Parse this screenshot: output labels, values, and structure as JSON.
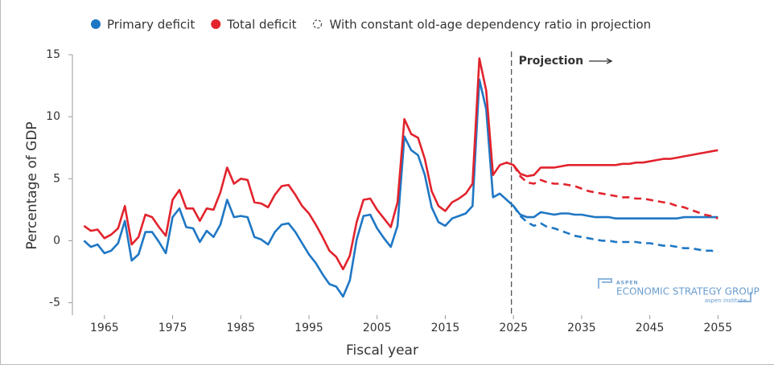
{
  "chart_data": {
    "type": "line",
    "x_label": "Fiscal year",
    "y_label": "Percentage of GDP",
    "x": [
      1962,
      1963,
      1964,
      1965,
      1966,
      1967,
      1968,
      1969,
      1970,
      1971,
      1972,
      1973,
      1974,
      1975,
      1976,
      1977,
      1978,
      1979,
      1980,
      1981,
      1982,
      1983,
      1984,
      1985,
      1986,
      1987,
      1988,
      1989,
      1990,
      1991,
      1992,
      1993,
      1994,
      1995,
      1996,
      1997,
      1998,
      1999,
      2000,
      2001,
      2002,
      2003,
      2004,
      2005,
      2006,
      2007,
      2008,
      2009,
      2010,
      2011,
      2012,
      2013,
      2014,
      2015,
      2016,
      2017,
      2018,
      2019,
      2020,
      2021,
      2022,
      2023,
      2024,
      2025,
      2026,
      2027,
      2028,
      2029,
      2030,
      2031,
      2032,
      2033,
      2034,
      2035,
      2036,
      2037,
      2038,
      2039,
      2040,
      2041,
      2042,
      2043,
      2044,
      2045,
      2046,
      2047,
      2048,
      2049,
      2050,
      2051,
      2052,
      2053,
      2054,
      2055
    ],
    "series": [
      {
        "name": "Primary deficit",
        "color": "#1f77c4",
        "dashed": false,
        "values": [
          0.0,
          -0.5,
          -0.3,
          -1.0,
          -0.8,
          -0.2,
          1.6,
          -1.6,
          -1.1,
          0.7,
          0.7,
          -0.1,
          -1.0,
          1.9,
          2.6,
          1.1,
          1.0,
          -0.1,
          0.8,
          0.3,
          1.3,
          3.3,
          1.9,
          2.0,
          1.9,
          0.3,
          0.1,
          -0.3,
          0.7,
          1.3,
          1.4,
          0.7,
          -0.2,
          -1.1,
          -1.8,
          -2.7,
          -3.5,
          -3.7,
          -4.5,
          -3.2,
          0.1,
          2.0,
          2.1,
          1.0,
          0.2,
          -0.5,
          1.2,
          8.4,
          7.3,
          6.9,
          5.3,
          2.7,
          1.5,
          1.2,
          1.8,
          2.0,
          2.2,
          2.8,
          13.0,
          10.6,
          3.5,
          3.8,
          3.3,
          2.8,
          2.1,
          1.9,
          1.9,
          2.3,
          2.2,
          2.1,
          2.2,
          2.2,
          2.1,
          2.1,
          2.0,
          1.9,
          1.9,
          1.9,
          1.8,
          1.8,
          1.8,
          1.8,
          1.8,
          1.8,
          1.8,
          1.8,
          1.8,
          1.8,
          1.9,
          1.9,
          1.9,
          1.9,
          1.9,
          1.9
        ]
      },
      {
        "name": "Total deficit",
        "color": "#e2232d",
        "dashed": false,
        "values": [
          1.2,
          0.8,
          0.9,
          0.2,
          0.5,
          1.0,
          2.8,
          -0.3,
          0.3,
          2.1,
          1.9,
          1.1,
          0.4,
          3.3,
          4.1,
          2.6,
          2.6,
          1.6,
          2.6,
          2.5,
          3.9,
          5.9,
          4.6,
          5.0,
          4.9,
          3.1,
          3.0,
          2.7,
          3.7,
          4.4,
          4.5,
          3.7,
          2.8,
          2.2,
          1.3,
          0.3,
          -0.8,
          -1.3,
          -2.3,
          -1.2,
          1.5,
          3.3,
          3.4,
          2.5,
          1.8,
          1.1,
          3.1,
          9.8,
          8.6,
          8.3,
          6.6,
          4.0,
          2.8,
          2.4,
          3.1,
          3.4,
          3.8,
          4.6,
          14.7,
          12.1,
          5.3,
          6.1,
          6.3,
          6.1,
          5.4,
          5.2,
          5.3,
          5.9,
          5.9,
          5.9,
          6.0,
          6.1,
          6.1,
          6.1,
          6.1,
          6.1,
          6.1,
          6.1,
          6.1,
          6.2,
          6.2,
          6.3,
          6.3,
          6.4,
          6.5,
          6.6,
          6.6,
          6.7,
          6.8,
          6.9,
          7.0,
          7.1,
          7.2,
          7.3
        ]
      },
      {
        "color": "#1f77c4",
        "dashed": true,
        "x": [
          2025,
          2026,
          2027,
          2028,
          2029,
          2030,
          2031,
          2032,
          2033,
          2034,
          2035,
          2036,
          2037,
          2038,
          2039,
          2040,
          2041,
          2042,
          2043,
          2044,
          2045,
          2046,
          2047,
          2048,
          2049,
          2050,
          2051,
          2052,
          2053,
          2054,
          2055
        ],
        "values": [
          2.8,
          2.0,
          1.5,
          1.2,
          1.4,
          1.1,
          1.0,
          0.8,
          0.6,
          0.4,
          0.3,
          0.2,
          0.1,
          0.0,
          0.0,
          -0.1,
          -0.1,
          -0.1,
          -0.1,
          -0.2,
          -0.2,
          -0.3,
          -0.4,
          -0.4,
          -0.5,
          -0.6,
          -0.6,
          -0.7,
          -0.8,
          -0.8,
          -0.9
        ]
      },
      {
        "color": "#e2232d",
        "dashed": true,
        "x": [
          2025,
          2026,
          2027,
          2028,
          2029,
          2030,
          2031,
          2032,
          2033,
          2034,
          2035,
          2036,
          2037,
          2038,
          2039,
          2040,
          2041,
          2042,
          2043,
          2044,
          2045,
          2046,
          2047,
          2048,
          2049,
          2050,
          2051,
          2052,
          2053,
          2054,
          2055
        ],
        "values": [
          6.1,
          5.2,
          4.7,
          4.6,
          4.9,
          4.7,
          4.6,
          4.6,
          4.5,
          4.4,
          4.2,
          4.0,
          3.9,
          3.8,
          3.7,
          3.6,
          3.5,
          3.5,
          3.4,
          3.4,
          3.3,
          3.2,
          3.1,
          3.0,
          2.8,
          2.7,
          2.5,
          2.3,
          2.1,
          2.0,
          1.8
        ]
      }
    ],
    "dashed_legend": "With constant old-age dependency ratio in projection",
    "projection": {
      "label": "Projection",
      "x": 2024.7
    },
    "logo": {
      "top": "ASPEN",
      "main": "ECONOMIC STRATEGY GROUP",
      "sub": "aspen institute"
    },
    "xlim": [
      1960.3,
      2058.5
    ],
    "ylim": [
      -6,
      15
    ],
    "xticks": [
      1965,
      1975,
      1985,
      1995,
      2005,
      2015,
      2025,
      2035,
      2045,
      2055
    ],
    "yticks": [
      -5,
      0,
      5,
      10,
      15
    ]
  }
}
